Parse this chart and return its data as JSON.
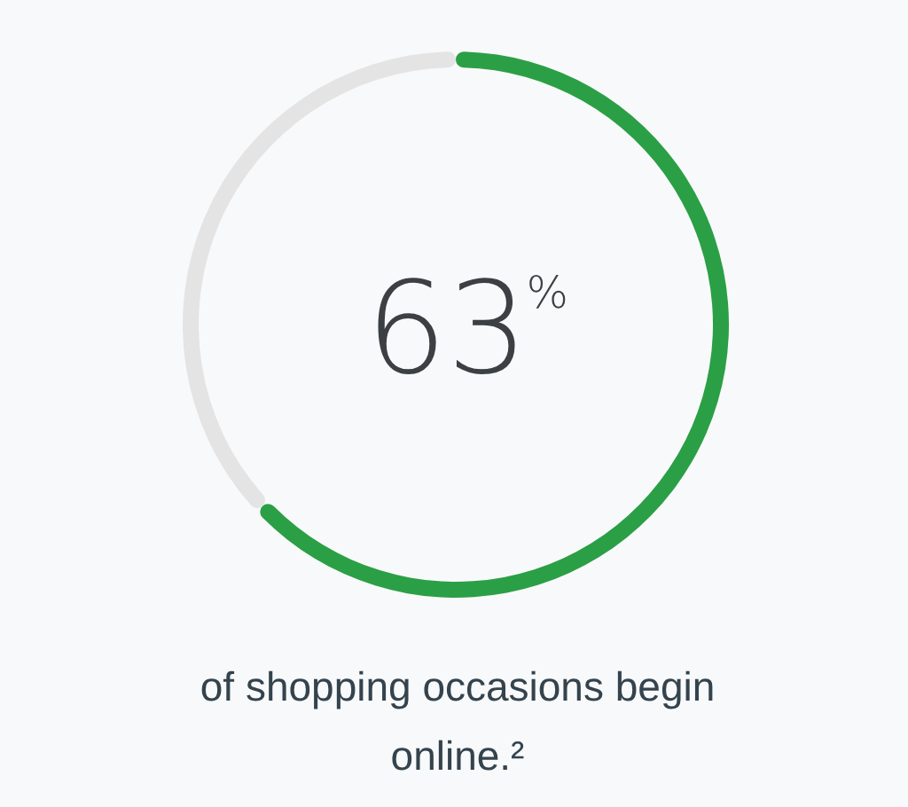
{
  "chart_data": {
    "type": "donut",
    "categories": [
      null,
      null
    ],
    "values": [
      63,
      37
    ],
    "colors": [
      "#2b9f45",
      "#e4e4e4"
    ],
    "value_labels": [
      "63$^{%}$",
      null
    ],
    "annotations": [
      "of shopping occasions begin online.²"
    ]
  }
}
